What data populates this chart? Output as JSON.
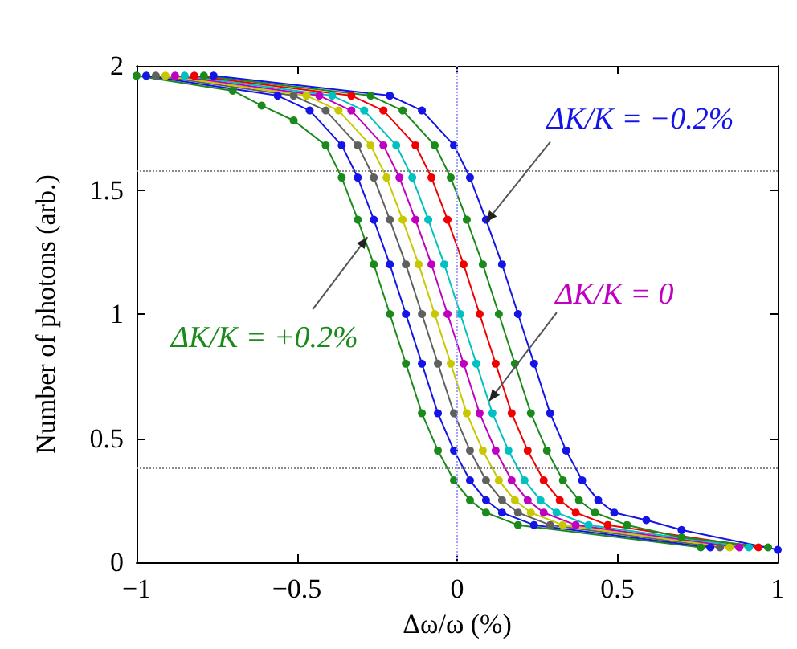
{
  "chart_data": {
    "type": "line",
    "xlabel": "Δω/ω (%)",
    "ylabel": "Number of photons (arb.)",
    "xlim": [
      -1,
      1
    ],
    "xticks": [
      -1,
      -0.5,
      0,
      0.5,
      1
    ],
    "ylim": [
      0,
      2
    ],
    "yticks": [
      0,
      0.5,
      1,
      1.5,
      2
    ],
    "grid": false,
    "legend": false,
    "marker": "circle",
    "line_style": "solid",
    "series": [
      {
        "color": "#1a8a1a",
        "x": [
          -1,
          -0.7,
          -0.61,
          -0.51,
          -0.41,
          -0.36,
          -0.31,
          -0.26,
          -0.21,
          -0.16,
          -0.11,
          -0.06,
          -0.01,
          0.04,
          0.09,
          0.19,
          0.76
        ],
        "values": [
          1.96,
          1.9,
          1.84,
          1.78,
          1.68,
          1.55,
          1.38,
          1.2,
          1.0,
          0.8,
          0.6,
          0.45,
          0.33,
          0.25,
          0.2,
          0.15,
          0.06
        ]
      },
      {
        "color": "#1414e6",
        "x": [
          -0.97,
          -0.56,
          -0.46,
          -0.36,
          -0.31,
          -0.26,
          -0.21,
          -0.16,
          -0.11,
          -0.06,
          -0.01,
          0.04,
          0.09,
          0.14,
          0.24,
          0.79
        ],
        "values": [
          1.96,
          1.88,
          1.82,
          1.68,
          1.55,
          1.38,
          1.2,
          1.0,
          0.8,
          0.6,
          0.45,
          0.33,
          0.25,
          0.2,
          0.15,
          0.06
        ]
      },
      {
        "color": "#606060",
        "x": [
          -0.94,
          -0.51,
          -0.41,
          -0.31,
          -0.26,
          -0.21,
          -0.16,
          -0.11,
          -0.06,
          -0.01,
          0.04,
          0.09,
          0.14,
          0.19,
          0.29,
          0.82
        ],
        "values": [
          1.96,
          1.88,
          1.82,
          1.68,
          1.55,
          1.38,
          1.2,
          1.0,
          0.8,
          0.6,
          0.45,
          0.33,
          0.25,
          0.2,
          0.15,
          0.06
        ]
      },
      {
        "color": "#c8c800",
        "x": [
          -0.91,
          -0.47,
          -0.37,
          -0.27,
          -0.22,
          -0.17,
          -0.12,
          -0.07,
          -0.02,
          0.03,
          0.08,
          0.13,
          0.18,
          0.23,
          0.33,
          0.85
        ],
        "values": [
          1.96,
          1.88,
          1.82,
          1.68,
          1.55,
          1.38,
          1.2,
          1.0,
          0.8,
          0.6,
          0.45,
          0.33,
          0.25,
          0.2,
          0.15,
          0.06
        ]
      },
      {
        "color": "#c000c0",
        "x": [
          -0.88,
          -0.43,
          -0.33,
          -0.23,
          -0.18,
          -0.13,
          -0.08,
          -0.03,
          0.02,
          0.07,
          0.12,
          0.17,
          0.22,
          0.27,
          0.37,
          0.88
        ],
        "values": [
          1.96,
          1.88,
          1.82,
          1.68,
          1.55,
          1.38,
          1.2,
          1.0,
          0.8,
          0.6,
          0.45,
          0.33,
          0.25,
          0.2,
          0.15,
          0.06
        ]
      },
      {
        "color": "#00c0c0",
        "x": [
          -0.85,
          -0.39,
          -0.29,
          -0.19,
          -0.14,
          -0.09,
          -0.04,
          0.01,
          0.06,
          0.11,
          0.16,
          0.21,
          0.26,
          0.31,
          0.41,
          0.91
        ],
        "values": [
          1.96,
          1.88,
          1.82,
          1.68,
          1.55,
          1.38,
          1.2,
          1.0,
          0.8,
          0.6,
          0.45,
          0.33,
          0.25,
          0.2,
          0.15,
          0.06
        ]
      },
      {
        "color": "#f00000",
        "x": [
          -0.82,
          -0.33,
          -0.23,
          -0.13,
          -0.08,
          -0.03,
          0.02,
          0.07,
          0.12,
          0.17,
          0.22,
          0.27,
          0.32,
          0.37,
          0.47,
          0.94
        ],
        "values": [
          1.96,
          1.88,
          1.82,
          1.68,
          1.55,
          1.38,
          1.2,
          1.0,
          0.8,
          0.6,
          0.45,
          0.33,
          0.25,
          0.2,
          0.15,
          0.06
        ]
      },
      {
        "color": "#1a8a1a",
        "x": [
          -0.79,
          -0.27,
          -0.17,
          -0.07,
          -0.02,
          0.03,
          0.08,
          0.13,
          0.18,
          0.23,
          0.28,
          0.33,
          0.38,
          0.43,
          0.53,
          0.7,
          0.97
        ],
        "values": [
          1.96,
          1.88,
          1.82,
          1.68,
          1.55,
          1.38,
          1.2,
          1.0,
          0.8,
          0.6,
          0.45,
          0.33,
          0.25,
          0.2,
          0.15,
          0.1,
          0.06
        ]
      },
      {
        "color": "#1414e6",
        "x": [
          -0.76,
          -0.21,
          -0.11,
          -0.01,
          0.04,
          0.09,
          0.14,
          0.19,
          0.24,
          0.29,
          0.34,
          0.39,
          0.44,
          0.49,
          0.59,
          0.7,
          1
        ],
        "values": [
          1.96,
          1.88,
          1.82,
          1.68,
          1.55,
          1.38,
          1.2,
          1.0,
          0.8,
          0.6,
          0.45,
          0.33,
          0.25,
          0.2,
          0.17,
          0.13,
          0.05
        ]
      }
    ],
    "ref_lines": [
      {
        "axis": "y",
        "value": 1.58,
        "color": "#888888",
        "line_style": "dotted"
      },
      {
        "axis": "y",
        "value": 0.38,
        "color": "#888888",
        "line_style": "dotted"
      },
      {
        "axis": "x",
        "value": 0,
        "color": "#a0a0ff",
        "line_style": "dotted"
      }
    ],
    "annotations": [
      {
        "text": "ΔK/K = −0.2%",
        "x": 0.09,
        "y": 1.37
      },
      {
        "text": "ΔK/K = 0",
        "x": 0.1,
        "y": 0.65
      },
      {
        "text": "ΔK/K = +0.2%",
        "x": -0.28,
        "y": 1.31
      }
    ]
  }
}
